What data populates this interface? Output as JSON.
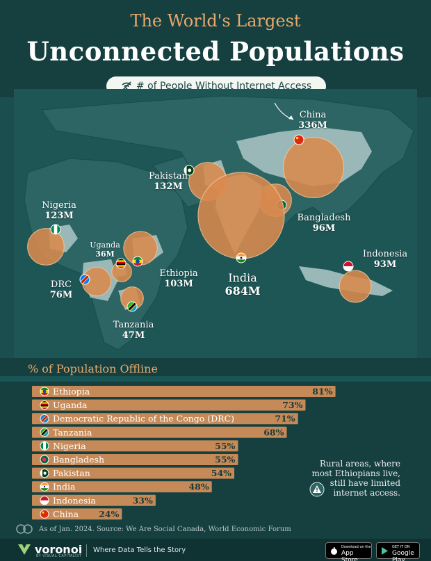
{
  "header": {
    "kicker": "The World's Largest",
    "title": "Unconnected Populations",
    "legend_pill": "# of People Without Internet Access"
  },
  "map": {
    "bubbles": [
      {
        "country": "China",
        "value_label": "336M",
        "value": 336,
        "flag": "china"
      },
      {
        "country": "Pakistan",
        "value_label": "132M",
        "value": 132,
        "flag": "pakistan"
      },
      {
        "country": "Bangladesh",
        "value_label": "96M",
        "value": 96,
        "flag": "bangladesh"
      },
      {
        "country": "India",
        "value_label": "684M",
        "value": 684,
        "flag": "india"
      },
      {
        "country": "Indonesia",
        "value_label": "93M",
        "value": 93,
        "flag": "indonesia"
      },
      {
        "country": "Nigeria",
        "value_label": "123M",
        "value": 123,
        "flag": "nigeria"
      },
      {
        "country": "Uganda",
        "value_label": "36M",
        "value": 36,
        "flag": "uganda"
      },
      {
        "country": "Ethiopia",
        "value_label": "103M",
        "value": 103,
        "flag": "ethiopia"
      },
      {
        "country": "DRC",
        "value_label": "76M",
        "value": 76,
        "flag": "drc"
      },
      {
        "country": "Tanzania",
        "value_label": "47M",
        "value": 47,
        "flag": "tanzania"
      }
    ]
  },
  "chart_data": {
    "type": "bar",
    "title": "% of Population Offline",
    "categories": [
      "Ethiopia",
      "Uganda",
      "Democratic Republic of the Congo (DRC)",
      "Tanzania",
      "Nigeria",
      "Bangladesh",
      "Pakistan",
      "India",
      "Indonesia",
      "China"
    ],
    "values": [
      81,
      73,
      71,
      68,
      55,
      55,
      54,
      48,
      33,
      24
    ],
    "value_labels": [
      "81%",
      "73%",
      "71%",
      "68%",
      "55%",
      "55%",
      "54%",
      "48%",
      "33%",
      "24%"
    ],
    "unit": "%",
    "orientation": "horizontal",
    "xlim": [
      0,
      100
    ]
  },
  "note": "Rural areas, where most Ethiopians live, still have limited internet access.",
  "source": "As of Jan. 2024. Source: We Are Social Canada, World Economic Forum",
  "footer": {
    "brand": "voronoi",
    "brand_sub": "BY VISUAL CAPITALIST",
    "tagline": "Where Data Tells the Story",
    "appstore_small": "Download on the",
    "appstore_big": "App Store",
    "googleplay_small": "GET IT ON",
    "googleplay_big": "Google Play"
  },
  "colors": {
    "background": "#1b4e4e",
    "header": "#163f40",
    "land": "#2d6464",
    "highlight_land": "#9ab8b8",
    "bubble": "#d98a4e",
    "bar": "#c58a57",
    "accent": "#e8a96b"
  }
}
